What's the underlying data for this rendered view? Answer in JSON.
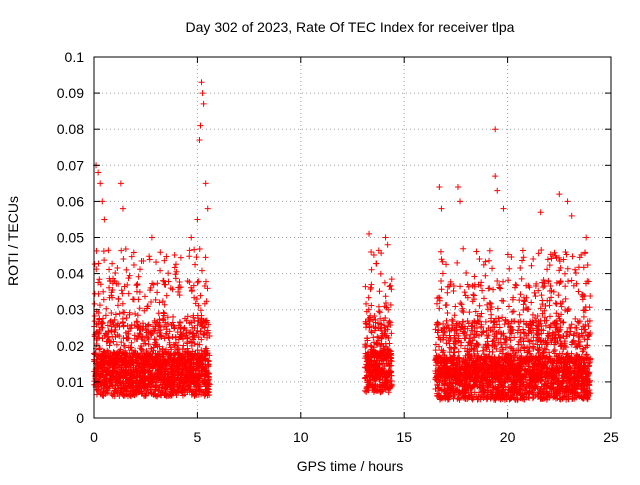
{
  "chart_data": {
    "type": "scatter",
    "title": "Day 302 of 2023, Rate Of TEC Index for receiver tlpa",
    "xlabel": "GPS time / hours",
    "ylabel": "ROTI / TECUs",
    "xlim": [
      0,
      25
    ],
    "ylim": [
      0,
      0.1
    ],
    "xticks": [
      "0",
      "5",
      "10",
      "15",
      "20",
      "25"
    ],
    "yticks": [
      "0",
      "0.01",
      "0.02",
      "0.03",
      "0.04",
      "0.05",
      "0.06",
      "0.07",
      "0.08",
      "0.09",
      "0.1"
    ],
    "grid": true,
    "marker": "plus",
    "color": "#ff0000",
    "series": [
      {
        "segments": [
          {
            "x_start": 0.0,
            "x_end": 5.6,
            "y_min": 0.003,
            "y_typical": 0.011
          },
          {
            "x_start": 13.1,
            "x_end": 14.4,
            "y_min": 0.004,
            "y_typical": 0.012
          },
          {
            "x_start": 16.5,
            "x_end": 24.0,
            "y_min": 0.002,
            "y_typical": 0.011
          }
        ],
        "notable_points": [
          {
            "x": 0.1,
            "y": 0.07
          },
          {
            "x": 0.2,
            "y": 0.068
          },
          {
            "x": 0.3,
            "y": 0.065
          },
          {
            "x": 0.4,
            "y": 0.06
          },
          {
            "x": 0.5,
            "y": 0.055
          },
          {
            "x": 1.3,
            "y": 0.065
          },
          {
            "x": 1.4,
            "y": 0.058
          },
          {
            "x": 2.8,
            "y": 0.05
          },
          {
            "x": 4.7,
            "y": 0.05
          },
          {
            "x": 5.0,
            "y": 0.055
          },
          {
            "x": 5.1,
            "y": 0.077
          },
          {
            "x": 5.15,
            "y": 0.081
          },
          {
            "x": 5.2,
            "y": 0.093
          },
          {
            "x": 5.25,
            "y": 0.09
          },
          {
            "x": 5.3,
            "y": 0.087
          },
          {
            "x": 5.4,
            "y": 0.065
          },
          {
            "x": 5.5,
            "y": 0.058
          },
          {
            "x": 13.3,
            "y": 0.051
          },
          {
            "x": 13.4,
            "y": 0.046
          },
          {
            "x": 14.1,
            "y": 0.05
          },
          {
            "x": 14.2,
            "y": 0.048
          },
          {
            "x": 16.7,
            "y": 0.064
          },
          {
            "x": 16.8,
            "y": 0.058
          },
          {
            "x": 17.6,
            "y": 0.064
          },
          {
            "x": 17.7,
            "y": 0.06
          },
          {
            "x": 19.4,
            "y": 0.08
          },
          {
            "x": 19.4,
            "y": 0.067
          },
          {
            "x": 19.5,
            "y": 0.063
          },
          {
            "x": 19.8,
            "y": 0.058
          },
          {
            "x": 21.6,
            "y": 0.057
          },
          {
            "x": 22.5,
            "y": 0.062
          },
          {
            "x": 22.9,
            "y": 0.06
          },
          {
            "x": 23.1,
            "y": 0.056
          },
          {
            "x": 23.8,
            "y": 0.05
          }
        ]
      }
    ]
  }
}
